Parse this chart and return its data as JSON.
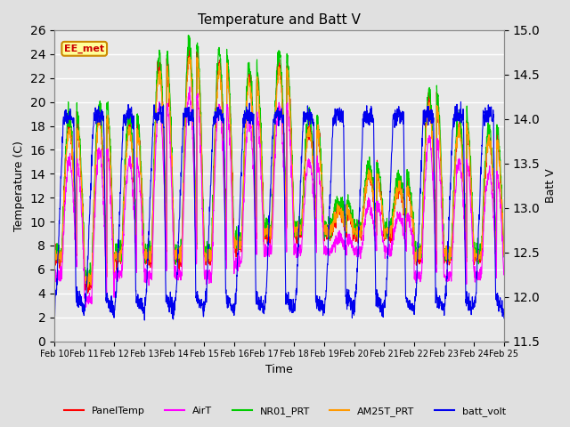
{
  "title": "Temperature and Batt V",
  "xlabel": "Time",
  "ylabel_left": "Temperature (C)",
  "ylabel_right": "Batt V",
  "ylim_left": [
    0,
    26
  ],
  "ylim_right": [
    11.5,
    15.0
  ],
  "xtick_labels": [
    "Feb 10",
    "Feb 11",
    "Feb 12",
    "Feb 13",
    "Feb 14",
    "Feb 15",
    "Feb 16",
    "Feb 17",
    "Feb 18",
    "Feb 19",
    "Feb 20",
    "Feb 21",
    "Feb 22",
    "Feb 23",
    "Feb 24",
    "Feb 25"
  ],
  "yticks_left": [
    0,
    2,
    4,
    6,
    8,
    10,
    12,
    14,
    16,
    18,
    20,
    22,
    24,
    26
  ],
  "yticks_right": [
    11.5,
    12.0,
    12.5,
    13.0,
    13.5,
    14.0,
    14.5,
    15.0
  ],
  "legend_entries": [
    "PanelTemp",
    "AirT",
    "NR01_PRT",
    "AM25T_PRT",
    "batt_volt"
  ],
  "legend_colors": [
    "#ff0000",
    "#ff00ff",
    "#00cc00",
    "#ff9900",
    "#0000ee"
  ],
  "plot_bg_color": "#e8e8e8",
  "grid_color": "#ffffff",
  "fig_bg_color": "#e0e0e0",
  "annotation_text": "EE_met",
  "annotation_color": "#cc0000",
  "annotation_bg": "#ffff99",
  "annotation_border": "#cc8800",
  "day_peaks": [
    18,
    19,
    18,
    23,
    24,
    23,
    22,
    23,
    18,
    11,
    14,
    13,
    20,
    18,
    17,
    17
  ],
  "day_mins": [
    7,
    5,
    7,
    7,
    7,
    7,
    8,
    9,
    9,
    9,
    9,
    9,
    7,
    7,
    7,
    7
  ]
}
